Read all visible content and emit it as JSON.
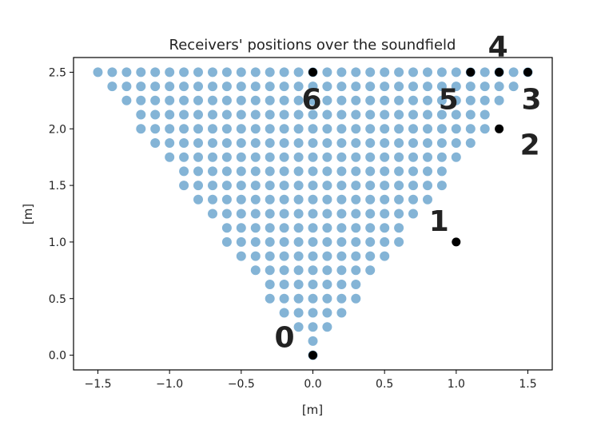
{
  "chart_data": {
    "type": "scatter",
    "title": "Receivers' positions over the soundfield",
    "xlabel": "[m]",
    "ylabel": "[m]",
    "xlim": [
      -1.67,
      1.67
    ],
    "ylim": [
      -0.13,
      2.63
    ],
    "xticks": [
      -1.5,
      -1.0,
      -0.5,
      0.0,
      0.5,
      1.0,
      1.5
    ],
    "yticks": [
      0.0,
      0.5,
      1.0,
      1.5,
      2.0,
      2.5
    ],
    "xtick_labels": [
      "−1.5",
      "−1.0",
      "−0.5",
      "0.0",
      "0.5",
      "1.0",
      "1.5"
    ],
    "ytick_labels": [
      "0.0",
      "0.5",
      "1.0",
      "1.5",
      "2.0",
      "2.5"
    ],
    "grid": false,
    "soundfield": {
      "color": "#1f77b4",
      "alpha": 0.55,
      "description_rule": "V-shaped grid of points; rows from y=0 to y=2.5, half-width = 0.6*y",
      "y_max": 2.5,
      "half_width_slope": 0.6,
      "column_spacing": 0.1
    },
    "receivers": [
      {
        "label": "0",
        "x": 0.0,
        "y": 0.0
      },
      {
        "label": "1",
        "x": 1.0,
        "y": 1.0
      },
      {
        "label": "2",
        "x": 1.3,
        "y": 2.0
      },
      {
        "label": "3",
        "x": 1.5,
        "y": 2.5
      },
      {
        "label": "4",
        "x": 1.3,
        "y": 2.5
      },
      {
        "label": "5",
        "x": 1.1,
        "y": 2.5
      },
      {
        "label": "6",
        "x": 0.0,
        "y": 2.5
      }
    ],
    "receiver_color": "#000000"
  }
}
